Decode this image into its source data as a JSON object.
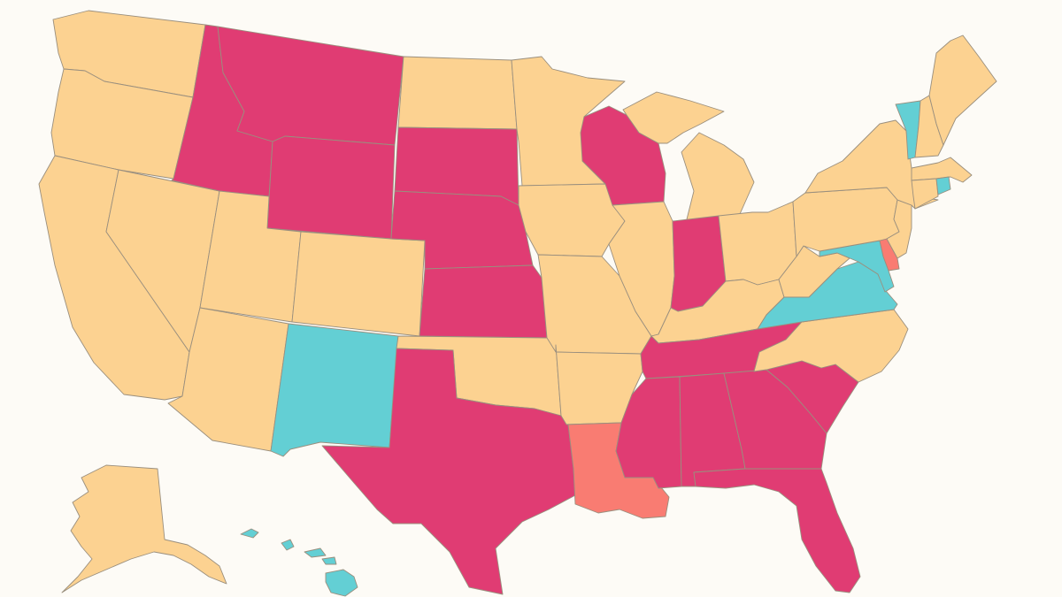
{
  "colors": {
    "background": "#fdfbf6",
    "peach": "#fcd291",
    "magenta": "#e03c73",
    "teal": "#63cfd4",
    "salmon": "#f97c72",
    "border": "#9a8f7e"
  },
  "states": [
    {
      "id": "WA",
      "category": "peach"
    },
    {
      "id": "OR",
      "category": "peach"
    },
    {
      "id": "CA",
      "category": "peach"
    },
    {
      "id": "NV",
      "category": "peach"
    },
    {
      "id": "ID",
      "category": "magenta"
    },
    {
      "id": "MT",
      "category": "magenta"
    },
    {
      "id": "WY",
      "category": "magenta"
    },
    {
      "id": "UT",
      "category": "peach"
    },
    {
      "id": "CO",
      "category": "peach"
    },
    {
      "id": "AZ",
      "category": "peach"
    },
    {
      "id": "NM",
      "category": "teal"
    },
    {
      "id": "ND",
      "category": "peach"
    },
    {
      "id": "SD",
      "category": "magenta"
    },
    {
      "id": "NE",
      "category": "magenta"
    },
    {
      "id": "KS",
      "category": "magenta"
    },
    {
      "id": "OK",
      "category": "peach"
    },
    {
      "id": "TX",
      "category": "magenta"
    },
    {
      "id": "MN",
      "category": "peach"
    },
    {
      "id": "IA",
      "category": "peach"
    },
    {
      "id": "MO",
      "category": "peach"
    },
    {
      "id": "AR",
      "category": "peach"
    },
    {
      "id": "LA",
      "category": "salmon"
    },
    {
      "id": "WI",
      "category": "magenta"
    },
    {
      "id": "IL",
      "category": "peach"
    },
    {
      "id": "MI",
      "category": "peach"
    },
    {
      "id": "IN",
      "category": "magenta"
    },
    {
      "id": "OH",
      "category": "peach"
    },
    {
      "id": "KY",
      "category": "peach"
    },
    {
      "id": "TN",
      "category": "magenta"
    },
    {
      "id": "MS",
      "category": "magenta"
    },
    {
      "id": "AL",
      "category": "magenta"
    },
    {
      "id": "GA",
      "category": "magenta"
    },
    {
      "id": "FL",
      "category": "magenta"
    },
    {
      "id": "SC",
      "category": "magenta"
    },
    {
      "id": "NC",
      "category": "peach"
    },
    {
      "id": "VA",
      "category": "teal"
    },
    {
      "id": "WV",
      "category": "peach"
    },
    {
      "id": "MD",
      "category": "teal"
    },
    {
      "id": "DE",
      "category": "salmon"
    },
    {
      "id": "PA",
      "category": "peach"
    },
    {
      "id": "NJ",
      "category": "peach"
    },
    {
      "id": "NY",
      "category": "peach"
    },
    {
      "id": "CT",
      "category": "peach"
    },
    {
      "id": "RI",
      "category": "teal"
    },
    {
      "id": "MA",
      "category": "peach"
    },
    {
      "id": "VT",
      "category": "teal"
    },
    {
      "id": "NH",
      "category": "peach"
    },
    {
      "id": "ME",
      "category": "peach"
    },
    {
      "id": "AK",
      "category": "peach"
    },
    {
      "id": "HI",
      "category": "teal"
    }
  ]
}
